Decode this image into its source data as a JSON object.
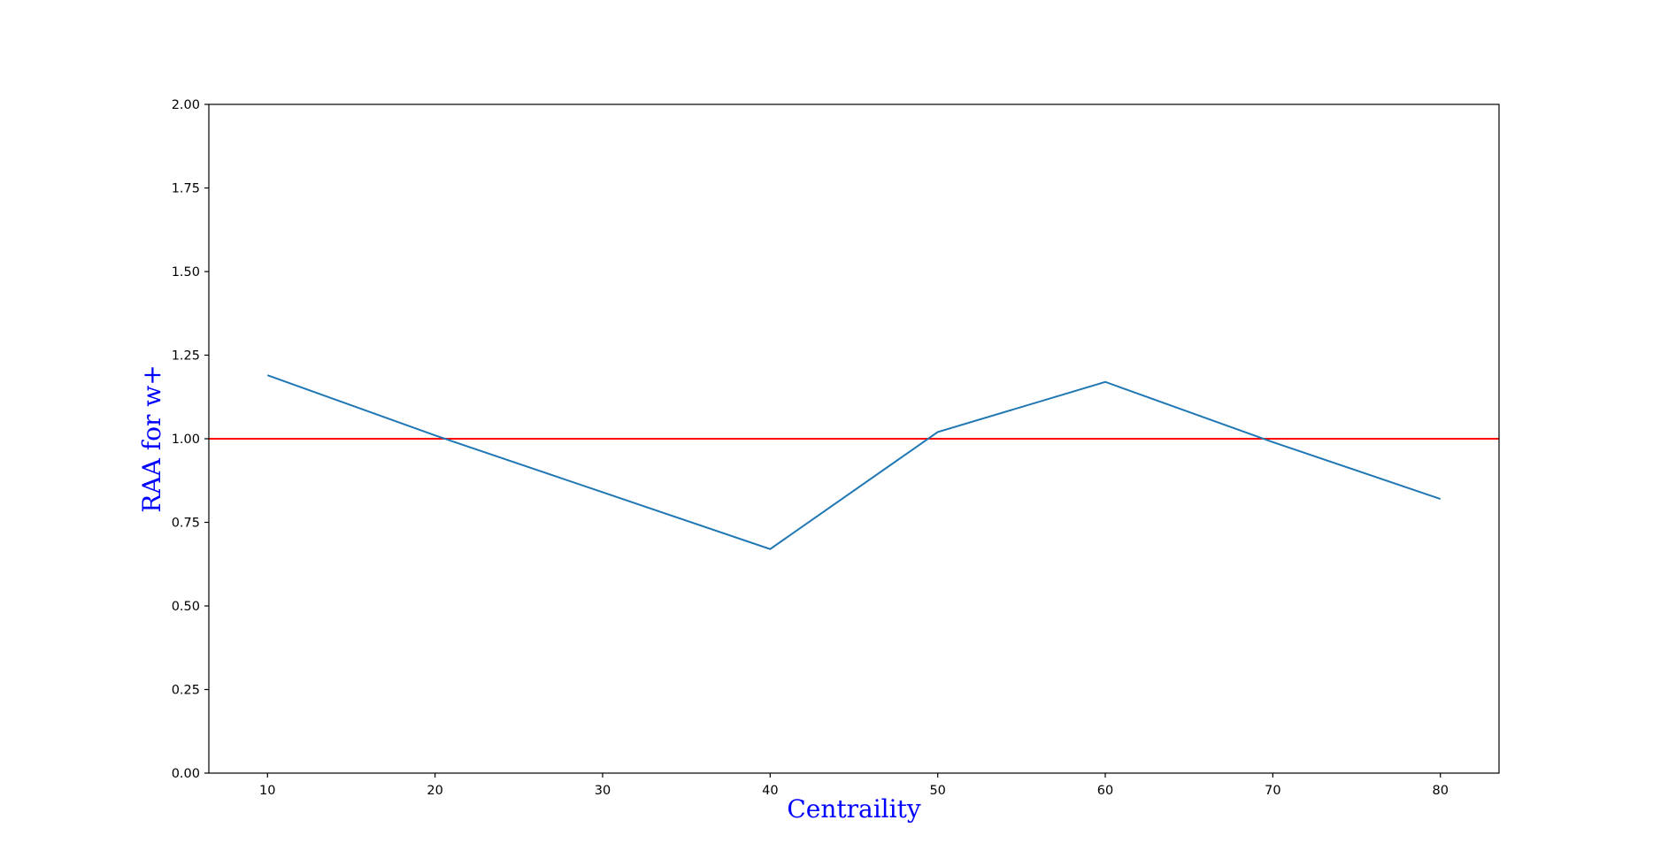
{
  "chart_data": {
    "type": "line",
    "title": "",
    "xlabel": "Centraility",
    "ylabel": "RAA for w+",
    "label_color": "#0000ff",
    "x": [
      10,
      20,
      30,
      40,
      50,
      60,
      70,
      80
    ],
    "series": [
      {
        "color": "#1f77b4",
        "values": [
          1.19,
          1.01,
          0.84,
          0.67,
          1.02,
          1.17,
          0.99,
          0.82
        ]
      }
    ],
    "reference_line": {
      "y": 1.0,
      "color": "#ff0000"
    },
    "xlim": [
      6.5,
      83.5
    ],
    "ylim": [
      0.0,
      2.0
    ],
    "xticks": [
      10,
      20,
      30,
      40,
      50,
      60,
      70,
      80
    ],
    "xtick_labels": [
      "10",
      "20",
      "30",
      "40",
      "50",
      "60",
      "70",
      "80"
    ],
    "yticks": [
      0.0,
      0.25,
      0.5,
      0.75,
      1.0,
      1.25,
      1.5,
      1.75,
      2.0
    ],
    "ytick_labels": [
      "0.00",
      "0.25",
      "0.50",
      "0.75",
      "1.00",
      "1.25",
      "1.50",
      "1.75",
      "2.00"
    ],
    "grid": false,
    "legend": "none"
  }
}
